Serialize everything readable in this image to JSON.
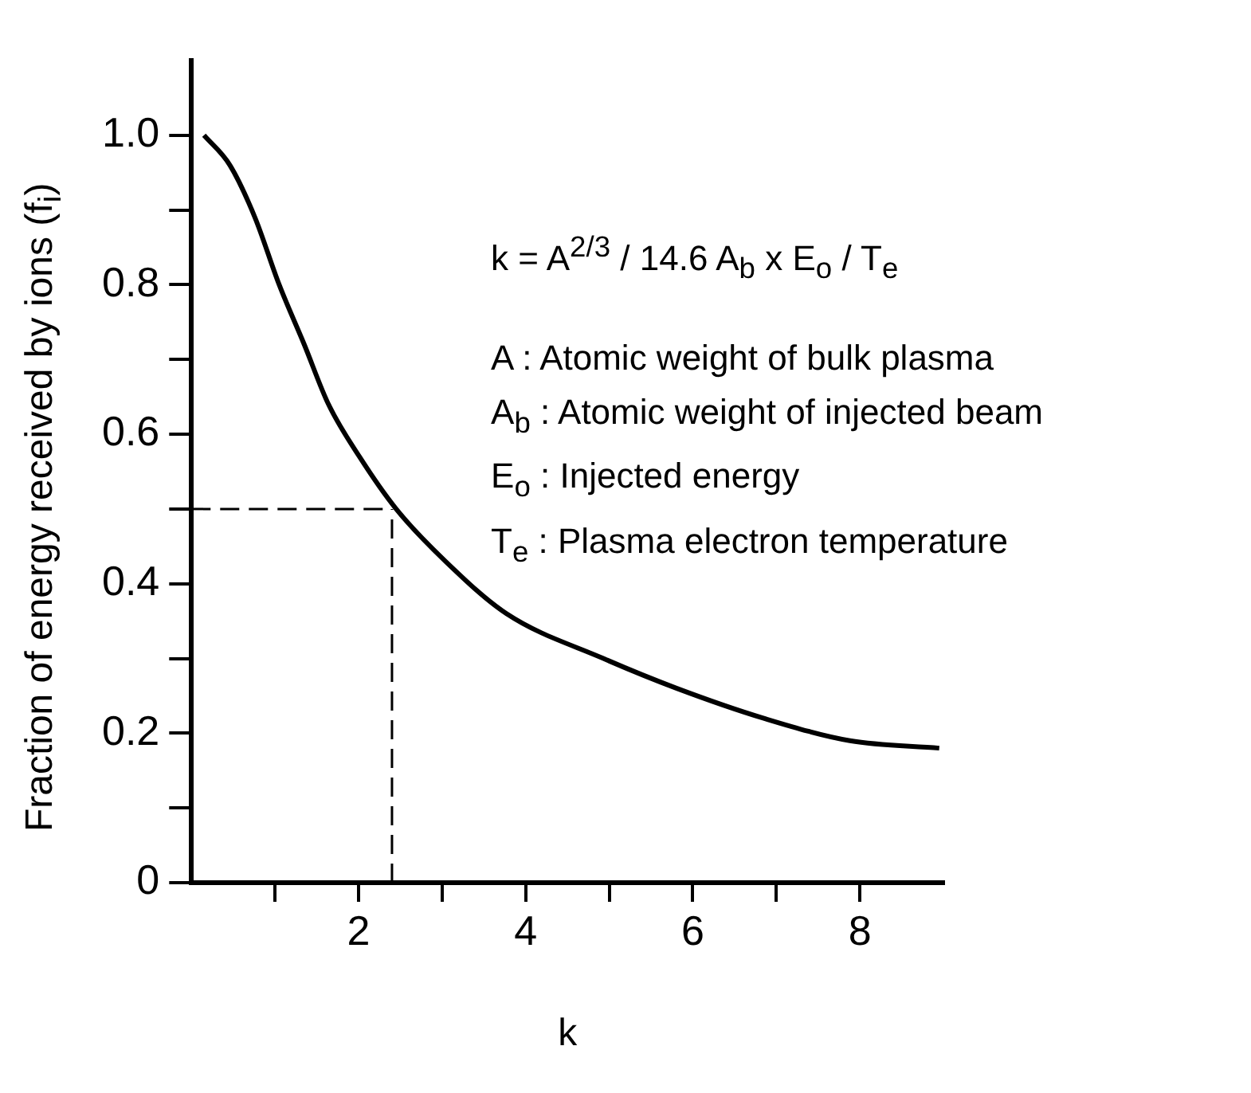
{
  "chart_data": {
    "type": "line",
    "xlabel": "k",
    "ylabel": "Fraction of energy received by ions (f$_{i}$)",
    "series": [
      {
        "color": "#000000",
        "x": [
          0.15,
          0.46,
          0.76,
          1.05,
          1.35,
          1.64,
          2.01,
          2.45,
          3.04,
          3.77,
          4.93,
          5.81,
          6.85,
          7.88,
          8.95
        ],
        "values": [
          1.0,
          0.96,
          0.89,
          0.8,
          0.72,
          0.64,
          0.57,
          0.5,
          0.43,
          0.36,
          0.3,
          0.26,
          0.22,
          0.19,
          0.18
        ]
      }
    ],
    "xlim": [
      0,
      9
    ],
    "ylim": [
      0,
      1.1
    ],
    "xticks": [
      {
        "value": 1,
        "label": null
      },
      2,
      {
        "value": 3,
        "label": null
      },
      4,
      {
        "value": 5,
        "label": null
      },
      6,
      {
        "value": 7,
        "label": null
      },
      8
    ],
    "yticks": [
      0,
      {
        "value": 0.1,
        "label": null
      },
      0.2,
      {
        "value": 0.3,
        "label": null
      },
      0.4,
      {
        "value": 0.5,
        "label": null
      },
      0.6,
      {
        "value": 0.7,
        "label": null
      },
      0.8,
      {
        "value": 0.9,
        "label": null
      },
      {
        "value": 1,
        "label": "1.0"
      }
    ],
    "ref_lines": [
      {
        "axis": "x",
        "value": 2.4,
        "line_style": "dashed",
        "color": "#000000"
      },
      {
        "axis": "y",
        "value": 0.5,
        "line_style": "dashed",
        "color": "#000000"
      }
    ],
    "annotations": [
      "k = A$^{2/3}$ / 14.6 A$_{b}$ x E$_{o}$ / T$_{e}$",
      "A : Atomic weight of bulk plasma",
      "A$_{b}$ : Atomic weight of injected beam",
      "E$_{o}$ : Injected energy",
      "T$_{e}$ : Plasma electron temperature"
    ],
    "grid": false,
    "legend": false,
    "marker": "none",
    "line_style": "solid"
  }
}
